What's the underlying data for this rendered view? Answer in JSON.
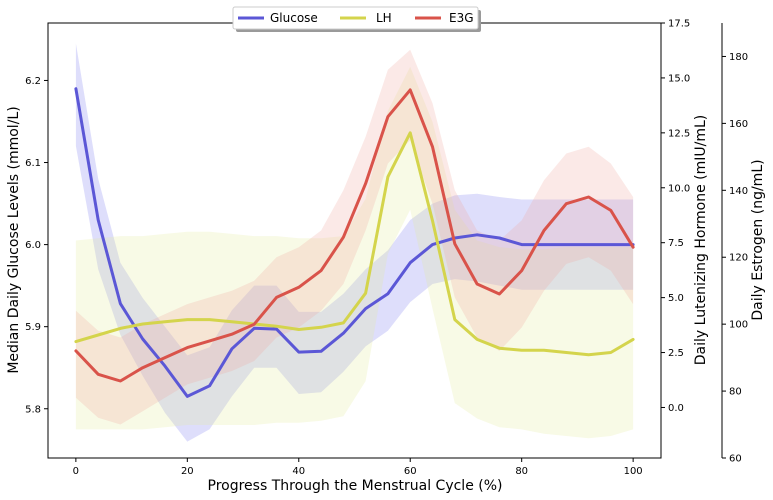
{
  "chart_data": {
    "type": "line",
    "xlabel": "Progress Through the Menstrual Cycle (%)",
    "xlim": [
      -5,
      105
    ],
    "xticks": [
      0,
      20,
      40,
      60,
      80,
      100
    ],
    "x": [
      0,
      4,
      8,
      12,
      16,
      20,
      24,
      28,
      32,
      36,
      40,
      44,
      48,
      52,
      56,
      60,
      64,
      68,
      72,
      76,
      80,
      84,
      88,
      92,
      96,
      100
    ],
    "legend_position": "top-center",
    "axes": {
      "glucose": {
        "label": "Median Daily Glucose Levels (mmol/L)",
        "lim": [
          5.74,
          6.27
        ],
        "ticks": [
          5.8,
          5.9,
          6.0,
          6.1,
          6.2
        ],
        "tick_labels": [
          "5.8",
          "5.9",
          "6.0",
          "6.1",
          "6.2"
        ]
      },
      "lh": {
        "label": "Daily Lutenizing Hormone (mIU/mL)",
        "lim": [
          -2.3,
          17.5
        ],
        "ticks": [
          0,
          2.5,
          5,
          7.5,
          10,
          12.5,
          15,
          17.5
        ],
        "tick_labels": [
          "0.0",
          "2.5",
          "5.0",
          "7.5",
          "10.0",
          "12.5",
          "15.0",
          "17.5"
        ]
      },
      "e3g": {
        "label": "Daily Estrogen (ng/mL)",
        "lim": [
          60,
          190
        ],
        "ticks": [
          60,
          80,
          100,
          120,
          140,
          160,
          180
        ],
        "tick_labels": [
          "60",
          "80",
          "100",
          "120",
          "140",
          "160",
          "180"
        ]
      }
    },
    "series": [
      {
        "name": "Glucose",
        "axis": "glucose",
        "color": "#5b57d6",
        "band_color": "#7d7dee",
        "values": [
          6.19,
          6.03,
          5.928,
          5.885,
          5.852,
          5.815,
          5.828,
          5.873,
          5.898,
          5.897,
          5.869,
          5.87,
          5.892,
          5.922,
          5.94,
          5.978,
          6.0,
          6.008,
          6.012,
          6.008,
          6.0,
          6.0,
          6.0,
          6.0,
          6.0,
          6.0
        ],
        "lower": [
          6.12,
          5.97,
          5.89,
          5.84,
          5.795,
          5.76,
          5.775,
          5.815,
          5.85,
          5.85,
          5.818,
          5.82,
          5.845,
          5.876,
          5.895,
          5.93,
          5.952,
          5.958,
          5.955,
          5.95,
          5.945,
          5.945,
          5.945,
          5.945,
          5.945,
          5.945
        ],
        "upper": [
          6.245,
          6.08,
          5.978,
          5.935,
          5.9,
          5.865,
          5.875,
          5.92,
          5.95,
          5.95,
          5.918,
          5.918,
          5.94,
          5.97,
          5.993,
          6.03,
          6.05,
          6.06,
          6.062,
          6.058,
          6.055,
          6.055,
          6.055,
          6.055,
          6.055,
          6.055
        ]
      },
      {
        "name": "LH",
        "axis": "lh",
        "color": "#d4d44c",
        "band_color": "#e4ea9a",
        "values": [
          3.0,
          3.3,
          3.6,
          3.8,
          3.9,
          4.0,
          4.0,
          3.9,
          3.8,
          3.7,
          3.55,
          3.65,
          3.85,
          5.2,
          10.5,
          12.5,
          8.5,
          4.0,
          3.1,
          2.7,
          2.6,
          2.6,
          2.5,
          2.4,
          2.5,
          3.1
        ],
        "lower": [
          -1.0,
          -1.0,
          -1.0,
          -1.0,
          -0.9,
          -0.8,
          -0.8,
          -0.8,
          -0.8,
          -0.7,
          -0.7,
          -0.6,
          -0.4,
          1.2,
          7.0,
          9.0,
          4.5,
          0.2,
          -0.5,
          -0.9,
          -1.0,
          -1.2,
          -1.3,
          -1.4,
          -1.3,
          -1.0
        ],
        "upper": [
          7.6,
          7.7,
          7.8,
          7.8,
          7.9,
          8.0,
          8.0,
          7.9,
          7.8,
          7.8,
          7.7,
          7.7,
          7.8,
          9.5,
          13.5,
          15.5,
          13.0,
          9.0,
          7.6,
          7.3,
          7.2,
          7.2,
          7.3,
          7.3,
          7.3,
          7.3
        ]
      },
      {
        "name": "E3G",
        "axis": "e3g",
        "color": "#d9534a",
        "band_color": "#f0a8a0",
        "values": [
          92,
          85,
          83,
          87,
          90,
          93,
          95,
          97,
          100,
          108,
          111,
          116,
          126,
          142,
          162,
          170,
          153,
          124,
          112,
          109,
          116,
          128,
          136,
          138,
          134,
          123
        ],
        "lower": [
          78,
          72,
          70,
          74,
          78,
          82,
          84,
          86,
          89,
          96,
          99,
          104,
          112,
          128,
          148,
          155,
          136,
          108,
          96,
          92,
          99,
          110,
          118,
          120,
          116,
          106
        ],
        "upper": [
          104,
          98,
          96,
          100,
          103,
          106,
          108,
          110,
          113,
          120,
          123,
          128,
          140,
          156,
          176,
          182,
          166,
          140,
          128,
          125,
          131,
          143,
          151,
          153,
          148,
          138
        ]
      }
    ]
  }
}
